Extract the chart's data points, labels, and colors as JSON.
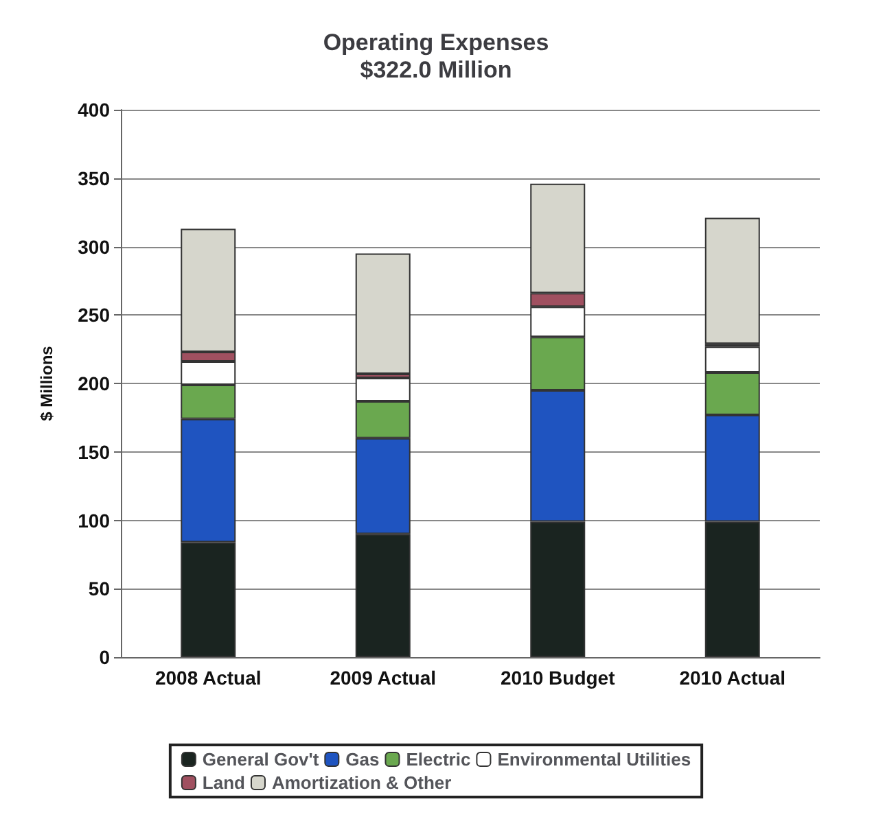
{
  "chart_data": {
    "type": "bar",
    "title": "Operating Expenses\n$322.0 Million",
    "ylabel": "$ Millions",
    "categories": [
      "2008 Actual",
      "2009 Actual",
      "2010 Budget",
      "2010 Actual"
    ],
    "stacked": true,
    "ylim": [
      0,
      400
    ],
    "yticks": [
      0,
      50,
      100,
      150,
      200,
      250,
      300,
      350,
      400
    ],
    "grid": "y",
    "legend": "bottom",
    "series": [
      {
        "name": "General Gov't",
        "color": "#1a2420",
        "values": [
          84,
          90,
          99,
          99
        ]
      },
      {
        "name": "Gas",
        "color": "#1f54c0",
        "values": [
          90,
          70,
          96,
          78
        ]
      },
      {
        "name": "Electric",
        "color": "#6aa84f",
        "values": [
          25,
          27,
          39,
          31
        ]
      },
      {
        "name": "Environmental Utilities",
        "color": "#ffffff",
        "values": [
          17,
          17,
          22,
          19
        ]
      },
      {
        "name": "Land",
        "color": "#a05060",
        "values": [
          7,
          3,
          10,
          2
        ]
      },
      {
        "name": "Amortization & Other",
        "color": "#d6d6cc",
        "values": [
          90,
          88,
          80,
          92
        ]
      }
    ]
  }
}
